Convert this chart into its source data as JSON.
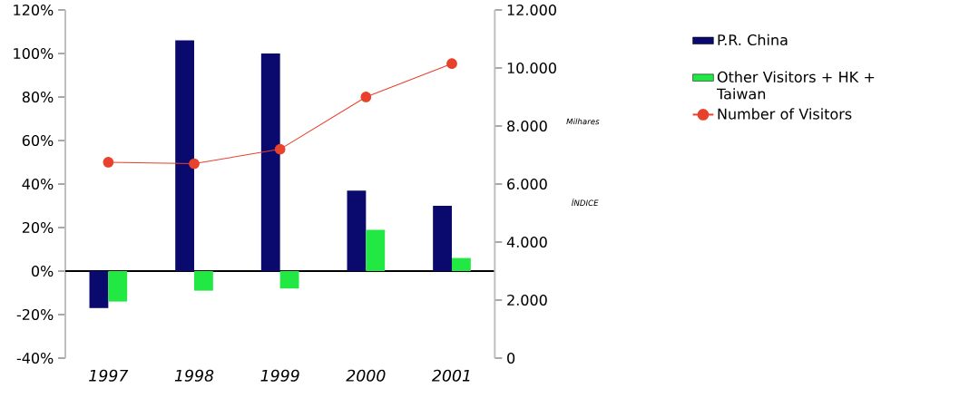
{
  "chart_data": {
    "type": "bar",
    "categories": [
      "1997",
      "1998",
      "1999",
      "2000",
      "2001"
    ],
    "series": [
      {
        "name": "P.R. China",
        "color": "#0a0a6e",
        "values": [
          -17,
          106,
          100,
          37,
          30
        ]
      },
      {
        "name": "Other Visitors + HK + Taiwan",
        "color": "#22e844",
        "values": [
          -14,
          -9,
          -8,
          19,
          6
        ]
      },
      {
        "name": "Number of Visitors",
        "type": "line",
        "axis": "y2",
        "color": "#e8412c",
        "marker": "circle",
        "values": [
          6750,
          6700,
          7200,
          9000,
          10150
        ]
      }
    ],
    "ylim": [
      -40,
      120
    ],
    "yticks": [
      {
        "value": -40,
        "label": "-40%"
      },
      {
        "value": -20,
        "label": "-20%"
      },
      {
        "value": 0,
        "label": "0%"
      },
      {
        "value": 20,
        "label": "20%"
      },
      {
        "value": 40,
        "label": "40%"
      },
      {
        "value": 60,
        "label": "60%"
      },
      {
        "value": 80,
        "label": "80%"
      },
      {
        "value": 100,
        "label": "100%"
      },
      {
        "value": 120,
        "label": "120%"
      }
    ],
    "y2lim": [
      0,
      12000
    ],
    "y2ticks": [
      {
        "value": 0,
        "label": "0"
      },
      {
        "value": 2000,
        "label": "2.000"
      },
      {
        "value": 4000,
        "label": "4.000"
      },
      {
        "value": 6000,
        "label": "6.000"
      },
      {
        "value": 8000,
        "label": "8.000"
      },
      {
        "value": 10000,
        "label": "10.000"
      },
      {
        "value": 12000,
        "label": "12.000"
      }
    ],
    "y2label": "Milhares",
    "annotations": [
      "ÍNDICE"
    ],
    "ref_lines": [
      {
        "axis": "y",
        "value": 0,
        "color": "#000000"
      }
    ],
    "legend": "right",
    "grid": false
  }
}
